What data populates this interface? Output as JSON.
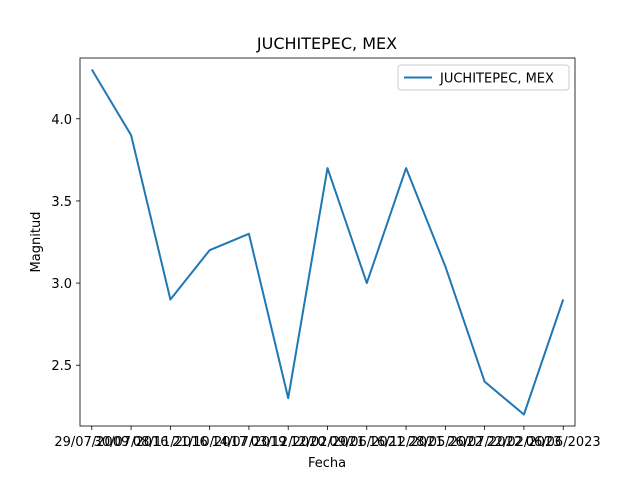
{
  "chart_data": {
    "type": "line",
    "title": "JUCHITEPEC, MEX",
    "xlabel": "Fecha",
    "ylabel": "Magnitud",
    "categories": [
      "29/07/2009",
      "30/07/2016",
      "08/11/2016",
      "21/10/2017",
      "14/07/2019",
      "03/12/2020",
      "12/02/2021",
      "09/06/2021",
      "16/12/2021",
      "28/05/2022",
      "26/07/2022",
      "22/02/2023",
      "06/06/2023"
    ],
    "series": [
      {
        "name": "JUCHITEPEC, MEX",
        "color": "#1f77b4",
        "values": [
          4.3,
          3.9,
          2.9,
          3.2,
          3.3,
          2.3,
          3.7,
          3.0,
          3.7,
          3.1,
          2.4,
          2.2,
          2.9
        ]
      }
    ],
    "ylim": [
      2.13,
      4.37
    ],
    "yticks": [
      "2.5",
      "3.0",
      "3.5",
      "4.0"
    ],
    "legend_position": "top-right",
    "grid": false
  }
}
